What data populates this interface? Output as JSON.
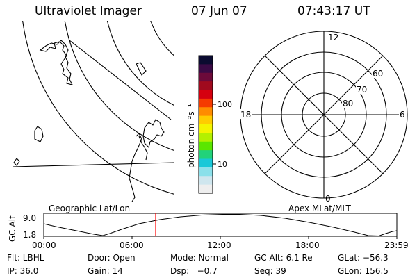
{
  "header": {
    "title": "Ultraviolet Imager",
    "date": "07 Jun 07",
    "time": "07:43:17 UT"
  },
  "colorbar": {
    "unit_label": "photon cm⁻²s⁻¹",
    "ticks": [
      "100",
      "10"
    ],
    "colors": [
      "#0b0b30",
      "#3a0a45",
      "#6c0a3a",
      "#a00a1e",
      "#d5000f",
      "#f53a00",
      "#ff8c00",
      "#ffcc00",
      "#f4f400",
      "#b4f000",
      "#5ae600",
      "#22d27a",
      "#18c8d8",
      "#8be0ea",
      "#cfe6ee",
      "#eeeeee"
    ]
  },
  "polar": {
    "labels": {
      "top": "12",
      "left": "18",
      "right": "6",
      "bottom": "0"
    },
    "lat_labels": [
      "60",
      "70",
      "80"
    ]
  },
  "altitude": {
    "y_label": "GC Alt",
    "y_ticks": [
      "9.0",
      "1.8"
    ],
    "x_ticks": [
      "00:00",
      "06:00",
      "12:00",
      "18:00",
      "23:59"
    ],
    "left_caption": "Geographic Lat/Lon",
    "right_caption": "Apex MLat/MLT",
    "marker_time": "07:43",
    "marker_color": "#ff0000"
  },
  "info": {
    "row1": [
      "Flt: LBHL",
      "Door: Open",
      "Mode: Normal",
      "GC Alt: 6.1 Re",
      "GLat: −56.3"
    ],
    "row2": [
      "IP: 36.0",
      "Gain: 14",
      "Dsp:   −0.7",
      "Seq: 39",
      "GLon: 156.5"
    ]
  }
}
